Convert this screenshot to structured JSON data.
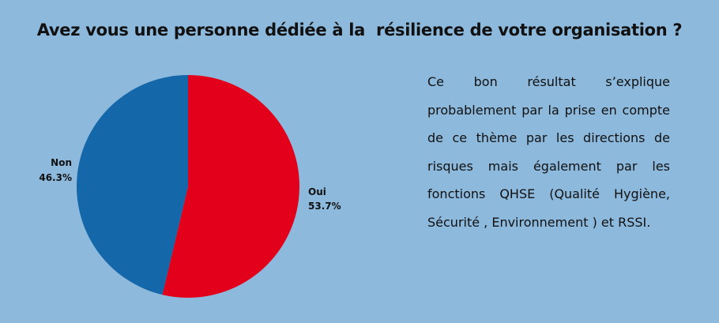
{
  "title": "Avez vous une personne dédiée à la  résilience de votre organisation ?",
  "chart_data": {
    "type": "pie",
    "title": "Avez vous une personne dédiée à la  résilience de votre organisation ?",
    "slices": [
      {
        "label": "Oui",
        "value": 53.7,
        "value_label": "53.7%",
        "color": "#e2001a"
      },
      {
        "label": "Non",
        "value": 46.3,
        "value_label": "46.3%",
        "color": "#1467a8"
      }
    ],
    "start_angle": "top",
    "direction": "clockwise"
  },
  "description": "Ce bon résultat s’explique probablement par la prise en compte de ce thème par les directions de risques mais également par les fonctions QHSE (Qualité Hygiène, Sécurité , Environnement ) et RSSI."
}
